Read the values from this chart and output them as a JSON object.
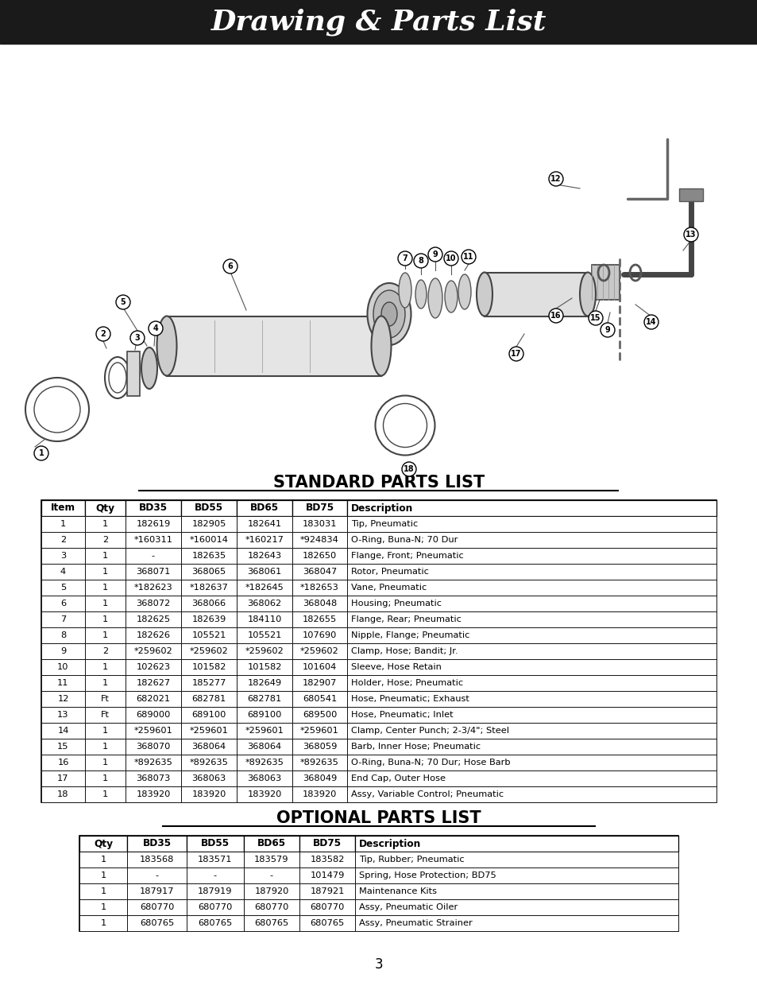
{
  "title": "Drawing & Parts List",
  "title_bg": "#1a1a1a",
  "title_color": "#ffffff",
  "standard_parts_title": "STANDARD PARTS LIST",
  "optional_parts_title": "OPTIONAL PARTS LIST",
  "page_number": "3",
  "standard_headers": [
    "Item",
    "Qty",
    "BD35",
    "BD55",
    "BD65",
    "BD75",
    "Description"
  ],
  "standard_rows": [
    [
      "1",
      "1",
      "182619",
      "182905",
      "182641",
      "183031",
      "Tip, Pneumatic"
    ],
    [
      "2",
      "2",
      "*160311",
      "*160014",
      "*160217",
      "*924834",
      "O-Ring, Buna-N; 70 Dur"
    ],
    [
      "3",
      "1",
      "-",
      "182635",
      "182643",
      "182650",
      "Flange, Front; Pneumatic"
    ],
    [
      "4",
      "1",
      "368071",
      "368065",
      "368061",
      "368047",
      "Rotor, Pneumatic"
    ],
    [
      "5",
      "1",
      "*182623",
      "*182637",
      "*182645",
      "*182653",
      "Vane, Pneumatic"
    ],
    [
      "6",
      "1",
      "368072",
      "368066",
      "368062",
      "368048",
      "Housing; Pneumatic"
    ],
    [
      "7",
      "1",
      "182625",
      "182639",
      "184110",
      "182655",
      "Flange, Rear; Pneumatic"
    ],
    [
      "8",
      "1",
      "182626",
      "105521",
      "105521",
      "107690",
      "Nipple, Flange; Pneumatic"
    ],
    [
      "9",
      "2",
      "*259602",
      "*259602",
      "*259602",
      "*259602",
      "Clamp, Hose; Bandit; Jr."
    ],
    [
      "10",
      "1",
      "102623",
      "101582",
      "101582",
      "101604",
      "Sleeve, Hose Retain"
    ],
    [
      "11",
      "1",
      "182627",
      "185277",
      "182649",
      "182907",
      "Holder, Hose; Pneumatic"
    ],
    [
      "12",
      "Ft",
      "682021",
      "682781",
      "682781",
      "680541",
      "Hose, Pneumatic; Exhaust"
    ],
    [
      "13",
      "Ft",
      "689000",
      "689100",
      "689100",
      "689500",
      "Hose, Pneumatic; Inlet"
    ],
    [
      "14",
      "1",
      "*259601",
      "*259601",
      "*259601",
      "*259601",
      "Clamp, Center Punch; 2-3/4\"; Steel"
    ],
    [
      "15",
      "1",
      "368070",
      "368064",
      "368064",
      "368059",
      "Barb, Inner Hose; Pneumatic"
    ],
    [
      "16",
      "1",
      "*892635",
      "*892635",
      "*892635",
      "*892635",
      "O-Ring, Buna-N; 70 Dur; Hose Barb"
    ],
    [
      "17",
      "1",
      "368073",
      "368063",
      "368063",
      "368049",
      "End Cap, Outer Hose"
    ],
    [
      "18",
      "1",
      "183920",
      "183920",
      "183920",
      "183920",
      "Assy, Variable Control; Pneumatic"
    ]
  ],
  "optional_headers": [
    "Qty",
    "BD35",
    "BD55",
    "BD65",
    "BD75",
    "Description"
  ],
  "optional_rows": [
    [
      "1",
      "183568",
      "183571",
      "183579",
      "183582",
      "Tip, Rubber; Pneumatic"
    ],
    [
      "1",
      "-",
      "-",
      "-",
      "101479",
      "Spring, Hose Protection; BD75"
    ],
    [
      "1",
      "187917",
      "187919",
      "187920",
      "187921",
      "Maintenance Kits"
    ],
    [
      "1",
      "680770",
      "680770",
      "680770",
      "680770",
      "Assy, Pneumatic Oiler"
    ],
    [
      "1",
      "680765",
      "680765",
      "680765",
      "680765",
      "Assy, Pneumatic Strainer"
    ]
  ],
  "bg_color": "#ffffff"
}
